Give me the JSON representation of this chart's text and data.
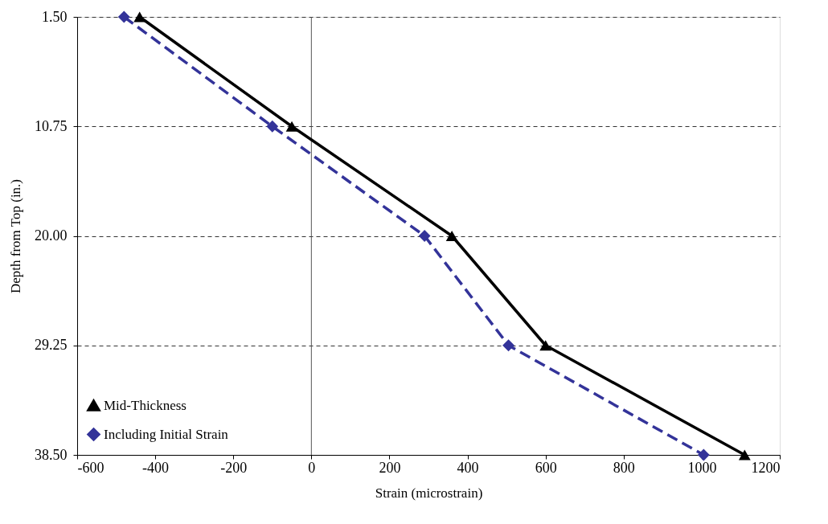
{
  "chart_data": {
    "type": "line",
    "xlabel": "Strain (microstrain)",
    "ylabel": "Depth from Top (in.)",
    "series": [
      {
        "name": "Mid-Thickness",
        "color": "#000000",
        "marker": "triangle",
        "line_style": "solid",
        "x": [
          -440,
          -50,
          360,
          600,
          1110
        ],
        "values": [
          1.5,
          10.75,
          20,
          29.25,
          38.5
        ]
      },
      {
        "name": "Including Initial Strain",
        "color": "#333399",
        "marker": "diamond",
        "line_style": "dashed",
        "x": [
          -480,
          -100,
          290,
          505,
          1005
        ],
        "values": [
          1.5,
          10.75,
          20,
          29.25,
          38.5
        ]
      }
    ],
    "xlim": [
      -600,
      1200
    ],
    "xticks": [
      -600,
      -400,
      -200,
      0,
      200,
      400,
      600,
      800,
      1000,
      1200
    ],
    "ylim": [
      38.5,
      1.5
    ],
    "yticks": [
      {
        "value": 1.5,
        "label": "1.50"
      },
      {
        "value": 10.75,
        "label": "10.75"
      },
      {
        "value": 20,
        "label": "20.00"
      },
      {
        "value": 29.25,
        "label": "29.25"
      },
      {
        "value": 38.5,
        "label": "38.50"
      }
    ],
    "grid": "y",
    "legend": "bottom left",
    "ref_lines": [
      {
        "axis": "x",
        "value": 0,
        "color": "#555555",
        "line_style": "solid"
      }
    ]
  }
}
